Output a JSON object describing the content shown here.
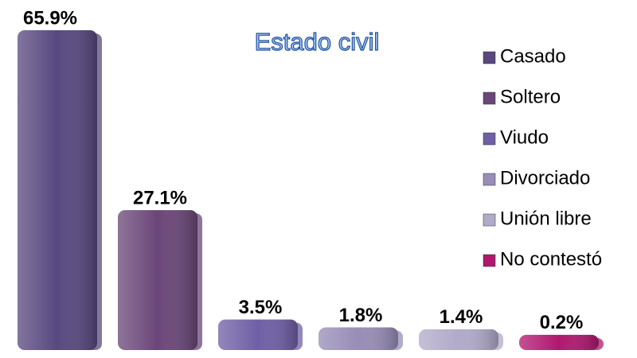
{
  "chart_data": {
    "type": "bar",
    "title": "Estado civil",
    "categories": [
      "Casado",
      "Soltero",
      "Viudo",
      "Divorciado",
      "Unión libre",
      "No contestó"
    ],
    "values": [
      65.9,
      27.1,
      3.5,
      1.8,
      1.4,
      0.2
    ],
    "value_labels": [
      "65.9%",
      "27.1%",
      "3.5%",
      "1.8%",
      "1.4%",
      "0.2%"
    ],
    "colors": [
      "#58487f",
      "#6a4678",
      "#6f5fa6",
      "#978db6",
      "#b1aac9",
      "#b0186e"
    ],
    "legend": "right"
  }
}
